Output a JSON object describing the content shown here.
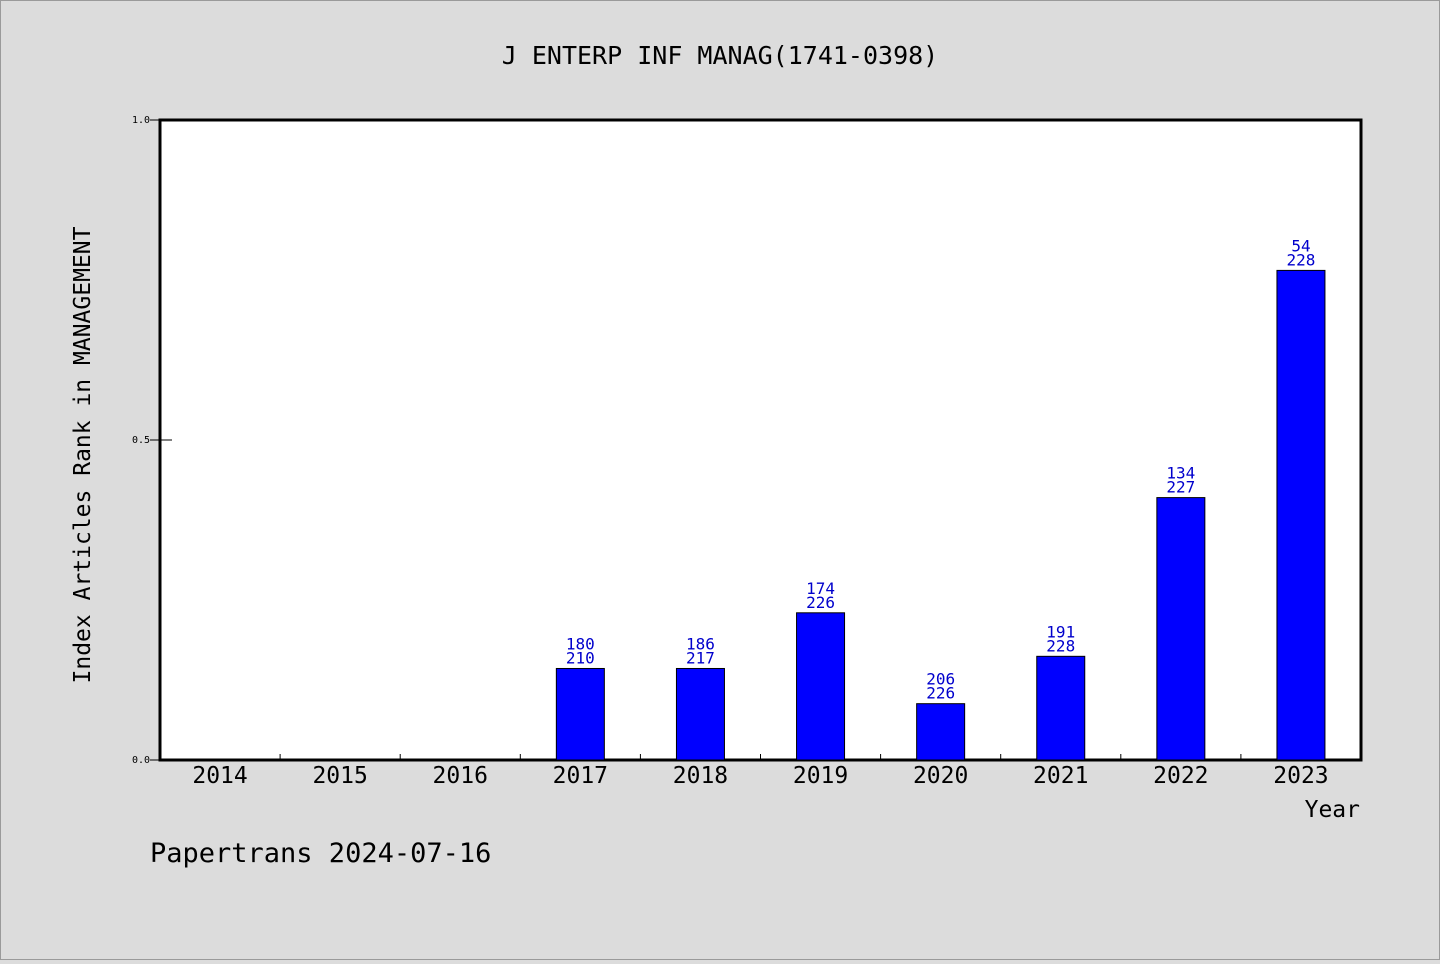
{
  "footer": "Papertrans 2024-07-16",
  "chart_data": {
    "type": "bar",
    "title": "J ENTERP INF MANAG(1741-0398)",
    "xlabel": "Year",
    "ylabel": "Index Articles Rank in MANAGEMENT",
    "ylim": [
      0,
      1
    ],
    "yticks": [
      "0.0",
      "0.5",
      "1.0"
    ],
    "ytick_values": [
      0,
      0.5,
      1
    ],
    "grid": false,
    "bar_color": "#0000ff",
    "label_color": "#0000cc",
    "categories": [
      "2014",
      "2015",
      "2016",
      "2017",
      "2018",
      "2019",
      "2020",
      "2021",
      "2022",
      "2023"
    ],
    "values": [
      null,
      null,
      null,
      0.143,
      0.143,
      0.23,
      0.088,
      0.162,
      0.41,
      0.765
    ],
    "ranks": [
      null,
      null,
      null,
      "180",
      "186",
      "174",
      "206",
      "191",
      "134",
      "54"
    ],
    "totals": [
      null,
      null,
      null,
      "210",
      "217",
      "226",
      "226",
      "228",
      "227",
      "228"
    ]
  }
}
